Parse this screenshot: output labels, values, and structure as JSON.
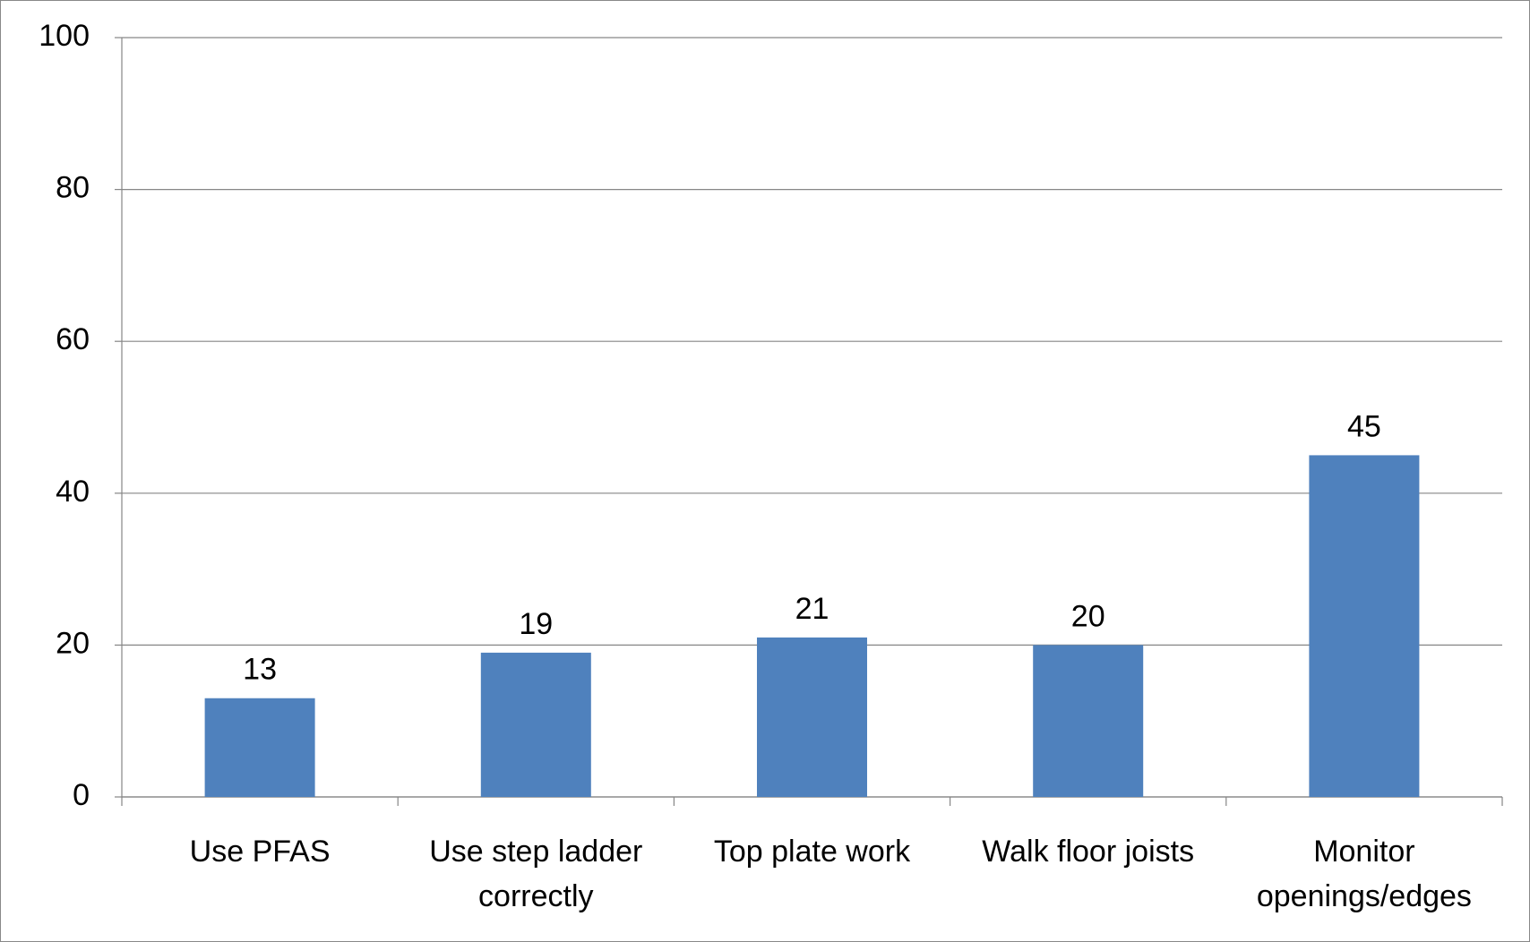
{
  "chart_data": {
    "type": "bar",
    "categories": [
      "Use PFAS",
      "Use step ladder correctly",
      "Top plate work",
      "Walk floor joists",
      "Monitor openings/edges"
    ],
    "values": [
      13,
      19,
      21,
      20,
      45
    ],
    "color": "#4f81bd",
    "ylim": [
      0,
      100
    ],
    "yticks": [
      0,
      20,
      40,
      60,
      80,
      100
    ],
    "grid": true
  }
}
